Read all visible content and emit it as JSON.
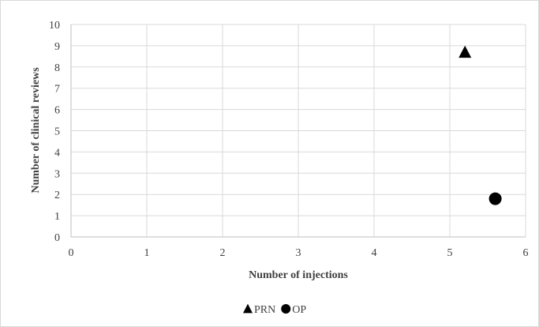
{
  "chart_data": {
    "type": "scatter",
    "title": "",
    "xlabel": "Number of injections",
    "ylabel": "Number of clinical reviews",
    "xlim": [
      0,
      6
    ],
    "ylim": [
      0,
      10
    ],
    "x_ticks": [
      "0",
      "1",
      "2",
      "3",
      "4",
      "5",
      "6"
    ],
    "y_ticks": [
      "0",
      "1",
      "2",
      "3",
      "4",
      "5",
      "6",
      "7",
      "8",
      "9",
      "10"
    ],
    "grid": true,
    "legend_position": "bottom",
    "series": [
      {
        "name": "PRN",
        "marker": "triangle",
        "color": "#000000",
        "points": [
          {
            "x": 5.2,
            "y": 8.7
          }
        ]
      },
      {
        "name": "OP",
        "marker": "circle",
        "color": "#000000",
        "points": [
          {
            "x": 5.6,
            "y": 1.8
          }
        ]
      }
    ]
  }
}
